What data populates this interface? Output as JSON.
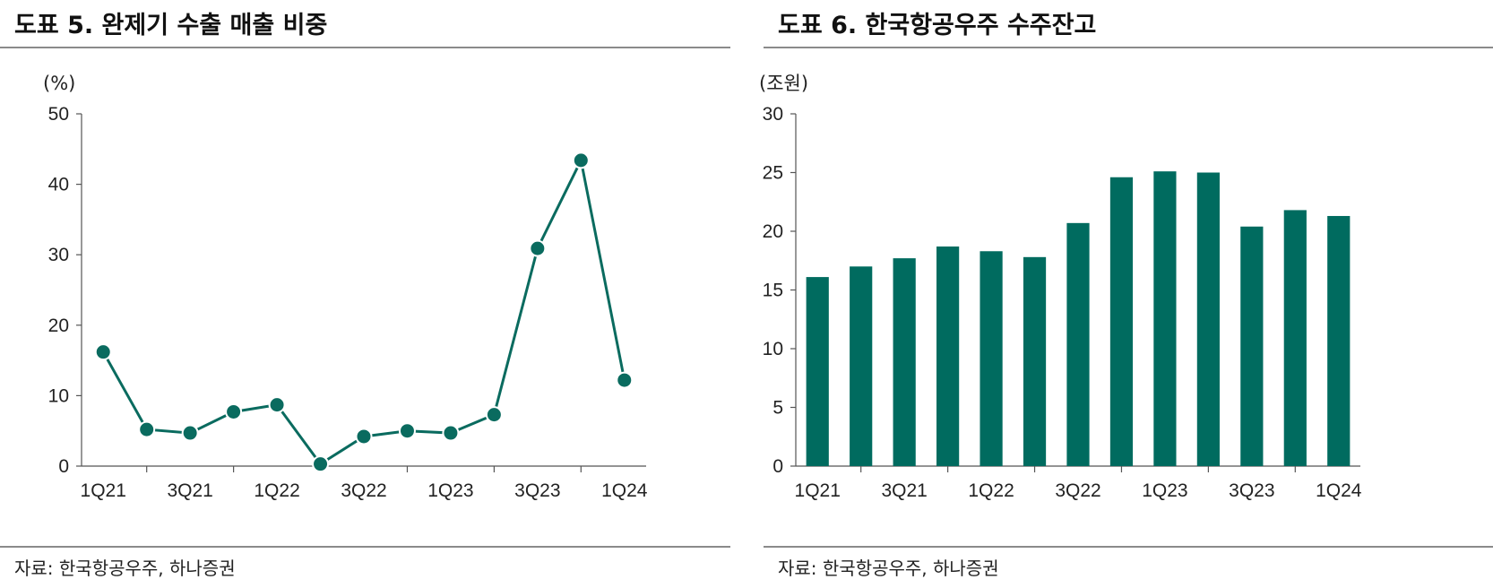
{
  "chart_data": [
    {
      "type": "line",
      "title": "도표 5. 완제기 수출 매출 비중",
      "unit": "(%)",
      "source": "자료: 한국항공우주, 하나증권",
      "color": "#0a6b5f",
      "ylim": [
        0,
        50
      ],
      "yticks": [
        0,
        10,
        20,
        30,
        40,
        50
      ],
      "categories": [
        "1Q21",
        "2Q21",
        "3Q21",
        "4Q21",
        "1Q22",
        "2Q22",
        "3Q22",
        "4Q22",
        "1Q23",
        "2Q23",
        "3Q23",
        "4Q23",
        "1Q24"
      ],
      "xtick_labels": [
        "1Q21",
        "3Q21",
        "1Q22",
        "3Q22",
        "1Q23",
        "3Q23",
        "1Q24"
      ],
      "values": [
        16.2,
        5.2,
        4.7,
        7.7,
        8.7,
        0.3,
        4.2,
        5.0,
        4.7,
        7.3,
        30.9,
        43.4,
        12.2
      ]
    },
    {
      "type": "bar",
      "title": "도표 6. 한국항공우주 수주잔고",
      "unit": "(조원)",
      "source": "자료: 한국항공우주, 하나증권",
      "color": "#006b5f",
      "ylim": [
        0,
        30
      ],
      "yticks": [
        0,
        5,
        10,
        15,
        20,
        25,
        30
      ],
      "categories": [
        "1Q21",
        "2Q21",
        "3Q21",
        "4Q21",
        "1Q22",
        "2Q22",
        "3Q22",
        "4Q22",
        "1Q23",
        "2Q23",
        "3Q23",
        "4Q23",
        "1Q24"
      ],
      "xtick_labels": [
        "1Q21",
        "3Q21",
        "1Q22",
        "3Q22",
        "1Q23",
        "3Q23",
        "1Q24"
      ],
      "values": [
        16.1,
        17.0,
        17.7,
        18.7,
        18.3,
        17.8,
        20.7,
        24.6,
        25.1,
        25.0,
        20.4,
        21.8,
        21.3
      ]
    }
  ]
}
